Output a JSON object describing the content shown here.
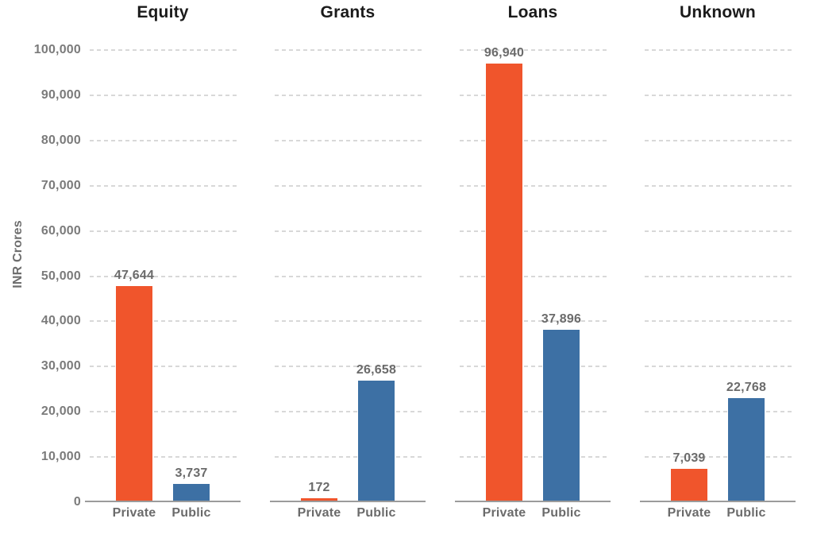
{
  "chart_data": {
    "type": "bar",
    "title": "",
    "ylabel": "INR Crores",
    "ylim": [
      0,
      100000
    ],
    "ytick_step": 10000,
    "ytick_labels": [
      "0",
      "10,000",
      "20,000",
      "30,000",
      "40,000",
      "50,000",
      "60,000",
      "70,000",
      "80,000",
      "90,000",
      "100,000"
    ],
    "grid": "horizontal-dashed",
    "legend_position": "none",
    "categories": [
      "Private",
      "Public"
    ],
    "series_colors": {
      "Private": "#F0552C",
      "Public": "#3D70A4"
    },
    "panels": [
      {
        "title": "Equity",
        "values": [
          47644,
          3737
        ],
        "value_labels": [
          "47,644",
          "3,737"
        ]
      },
      {
        "title": "Grants",
        "values": [
          172,
          26658
        ],
        "value_labels": [
          "172",
          "26,658"
        ]
      },
      {
        "title": "Loans",
        "values": [
          96940,
          37896
        ],
        "value_labels": [
          "96,940",
          "37,896"
        ]
      },
      {
        "title": "Unknown",
        "values": [
          7039,
          22768
        ],
        "value_labels": [
          "7,039",
          "22,768"
        ]
      }
    ]
  },
  "colors": {
    "bar_private": "#F0552C",
    "bar_public": "#3D70A4",
    "gridline": "#D8D8D8",
    "axis_line": "#9B9B9B",
    "label_gray": "#6B6B6B",
    "tick_gray": "#7B7B7B",
    "title_text": "#1B1B1B",
    "background": "#FFFFFF"
  }
}
